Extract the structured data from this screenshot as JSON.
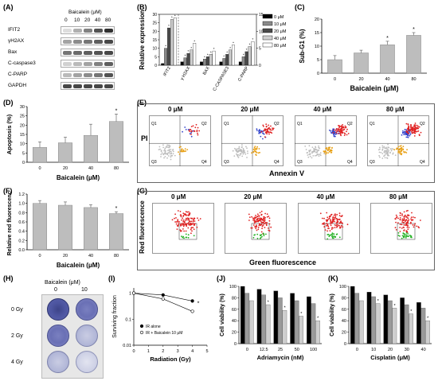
{
  "panels": {
    "A": "(A)",
    "B": "(B)",
    "C": "(C)",
    "D": "(D)",
    "E": "(E)",
    "F": "(F)",
    "G": "(G)",
    "H": "(H)",
    "I": "(I)",
    "J": "(J)",
    "K": "(K)"
  },
  "western": {
    "header": "Baicalein (μM)",
    "doses": [
      "0",
      "10",
      "20",
      "40",
      "80"
    ],
    "rows": [
      "IFIT2",
      "γH2AX",
      "Bax",
      "C-caspase3",
      "C-PARP",
      "GAPDH"
    ],
    "intensity": [
      [
        0.15,
        0.35,
        0.55,
        0.75,
        0.9
      ],
      [
        0.4,
        0.5,
        0.6,
        0.7,
        0.8
      ],
      [
        0.6,
        0.65,
        0.7,
        0.75,
        0.8
      ],
      [
        0.2,
        0.3,
        0.4,
        0.55,
        0.7
      ],
      [
        0.3,
        0.4,
        0.5,
        0.6,
        0.75
      ],
      [
        0.8,
        0.8,
        0.8,
        0.8,
        0.8
      ]
    ]
  },
  "flow_E": {
    "doses": [
      "0 μM",
      "20 μM",
      "40 μM",
      "80 μM"
    ],
    "ylabel": "PI",
    "xlabel": "Annexin V",
    "quadrants": [
      "Q1",
      "Q2",
      "Q3",
      "Q4"
    ]
  },
  "flow_G": {
    "doses": [
      "0 μM",
      "20 μM",
      "40 μM",
      "80 μM"
    ],
    "ylabel": "Red fluorescence",
    "xlabel": "Green fluorescence"
  },
  "colony": {
    "header": "Baicalein (μM)",
    "doses": [
      "0",
      "10"
    ],
    "rows": [
      "0 Gy",
      "2 Gy",
      "4 Gy"
    ]
  },
  "chart_data": [
    {
      "panel": "B",
      "type": "bar",
      "categories": [
        "IFIT2",
        "γ H2AX",
        "BAX",
        "C-CASPASE3",
        "C-PARP"
      ],
      "series": [
        {
          "name": "0 μM",
          "values": [
            1,
            1,
            1,
            1,
            1
          ]
        },
        {
          "name": "10 μM",
          "values": [
            10,
            2.2,
            1.8,
            2.0,
            2.5
          ]
        },
        {
          "name": "20 μM",
          "values": [
            22,
            3.5,
            2.5,
            3.2,
            4.0
          ]
        },
        {
          "name": "40 μM",
          "values": [
            27,
            4.5,
            3.2,
            4.5,
            5.5
          ]
        },
        {
          "name": "80 μM",
          "values": [
            28,
            6.5,
            4.2,
            6.0,
            7.0
          ]
        }
      ],
      "ylabel": "Relative expression",
      "ylim": [
        0,
        30
      ],
      "yticks": [
        0,
        5,
        10,
        15,
        20,
        25,
        30
      ],
      "y2ticks": [
        0,
        5,
        10,
        15
      ],
      "colors": [
        "#000000",
        "#8a8a8a",
        "#4a4a4a",
        "#cfcfcf",
        "#ffffff"
      ]
    },
    {
      "panel": "C",
      "type": "bar",
      "categories": [
        "0",
        "20",
        "40",
        "80"
      ],
      "values": [
        5,
        7.5,
        10.5,
        14
      ],
      "errors": [
        1.5,
        1.0,
        1.3,
        1.0
      ],
      "sig": [
        "",
        "",
        "*",
        "*"
      ],
      "ylabel": "Sub-G1 (%)",
      "xlabel": "Baicalein (μM)",
      "ylim": [
        0,
        20
      ],
      "yticks": [
        0,
        5,
        10,
        15,
        20
      ]
    },
    {
      "panel": "D",
      "type": "bar",
      "categories": [
        "0",
        "20",
        "40",
        "80"
      ],
      "values": [
        8,
        10.5,
        14.5,
        22
      ],
      "errors": [
        3,
        3,
        6,
        4
      ],
      "sig": [
        "",
        "",
        "",
        "*"
      ],
      "ylabel": "Apoptosis (%)",
      "xlabel": "Baicalein (μM)",
      "ylim": [
        0,
        30
      ],
      "yticks": [
        0,
        5,
        10,
        15,
        20,
        25,
        30
      ]
    },
    {
      "panel": "F",
      "type": "bar",
      "categories": [
        "0",
        "20",
        "40",
        "80"
      ],
      "values": [
        1.0,
        0.96,
        0.91,
        0.78
      ],
      "errors": [
        0.06,
        0.07,
        0.06,
        0.04
      ],
      "sig": [
        "",
        "",
        "",
        "*"
      ],
      "ylabel": "Relative red fluorescence",
      "xlabel": "Baicalein (μM)",
      "ylim": [
        0,
        1.2
      ],
      "yticks": [
        "0.0",
        "0.2",
        "0.4",
        "0.6",
        "0.8",
        "1.0",
        "1.2"
      ]
    },
    {
      "panel": "I",
      "type": "line",
      "xlabel": "Radiation (Gy)",
      "ylabel": "Surviving fraction",
      "xlim": [
        0,
        5
      ],
      "xticks": [
        0,
        1,
        2,
        3,
        4,
        5
      ],
      "yticks": [
        "0.01",
        "0.1",
        "1"
      ],
      "log_y": true,
      "series": [
        {
          "name": "IR alone",
          "x": [
            0,
            2,
            4
          ],
          "y": [
            1,
            0.85,
            0.5
          ]
        },
        {
          "name": "IR + Baicalein 10 μM",
          "x": [
            0,
            2,
            4
          ],
          "y": [
            1,
            0.6,
            0.2
          ]
        }
      ],
      "sig": "*"
    },
    {
      "panel": "J",
      "type": "bar",
      "categories": [
        "0",
        "12.5",
        "25",
        "50",
        "100"
      ],
      "series": [
        {
          "values": [
            100,
            95,
            92,
            88,
            82
          ]
        },
        {
          "values": [
            88,
            85,
            80,
            75,
            70
          ]
        },
        {
          "values": [
            75,
            68,
            58,
            48,
            40
          ]
        }
      ],
      "sig": [
        "",
        "*",
        "*",
        "*",
        "*"
      ],
      "ylabel": "Cell viability (%)",
      "xlabel": "Adriamycin (nM)",
      "ylim": [
        0,
        100
      ],
      "yticks": [
        "0",
        "20",
        "40",
        "60",
        "80",
        "100"
      ],
      "colors": [
        "#000000",
        "#9a9a9a",
        "#cfcfcf"
      ]
    },
    {
      "panel": "K",
      "type": "bar",
      "categories": [
        "0",
        "10",
        "20",
        "30",
        "40"
      ],
      "series": [
        {
          "values": [
            100,
            90,
            85,
            80,
            72
          ]
        },
        {
          "values": [
            88,
            82,
            75,
            68,
            62
          ]
        },
        {
          "values": [
            75,
            70,
            62,
            52,
            40
          ]
        }
      ],
      "sig": [
        "",
        "*",
        "*",
        "*",
        "*"
      ],
      "ylabel": "Cell viability (%)",
      "xlabel": "Cisplatin (μM)",
      "ylim": [
        0,
        100
      ],
      "yticks": [
        "0",
        "20",
        "40",
        "60",
        "80",
        "100"
      ],
      "colors": [
        "#000000",
        "#9a9a9a",
        "#cfcfcf"
      ]
    }
  ]
}
